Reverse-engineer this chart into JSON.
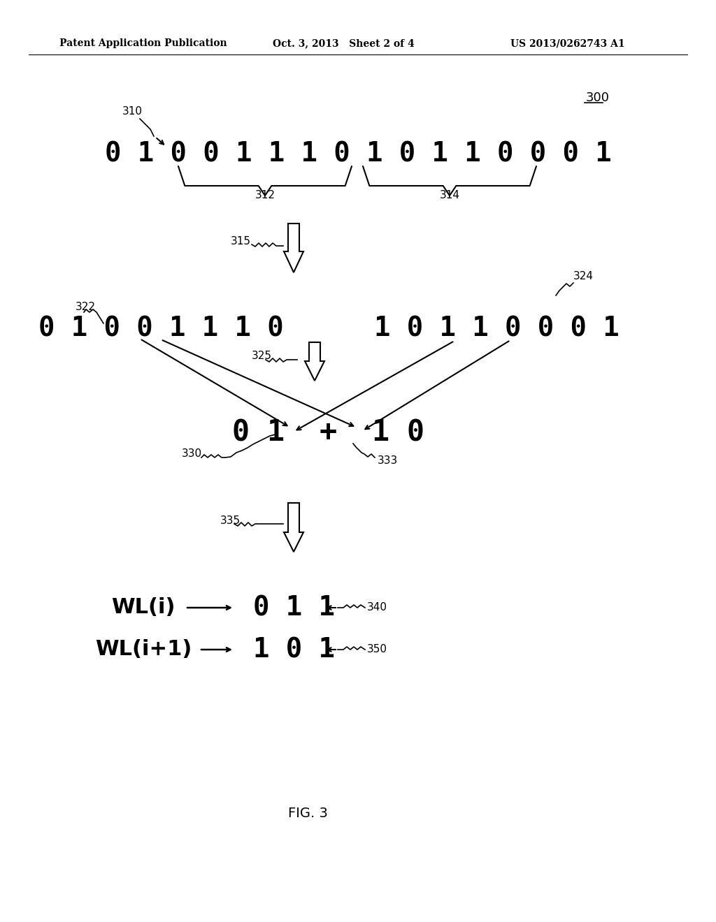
{
  "header_left": "Patent Application Publication",
  "header_mid": "Oct. 3, 2013   Sheet 2 of 4",
  "header_right": "US 2013/0262743 A1",
  "fig_label": "FIG. 3",
  "ref_300": "300",
  "ref_310": "310",
  "ref_312": "312",
  "ref_314": "314",
  "ref_315": "315",
  "ref_322": "322",
  "ref_324": "324",
  "ref_325": "325",
  "ref_330": "330",
  "ref_333": "333",
  "ref_335": "335",
  "ref_340": "340",
  "ref_350": "350",
  "bits_top": "0 1 0 0 1 1 1 0 1 0 1 1 0 0 0 1",
  "bits_left": "0 1 0 0 1 1 1 0",
  "bits_right": "1 0 1 1 0 0 0 1",
  "bits_center": "0 1  +  1 0",
  "wl_i_label": "WL(i)",
  "wl_i_bits": "0 1 1",
  "wl_i1_label": "WL(i+1)",
  "wl_i1_bits": "1 0 1",
  "bg_color": "#ffffff",
  "text_color": "#000000"
}
